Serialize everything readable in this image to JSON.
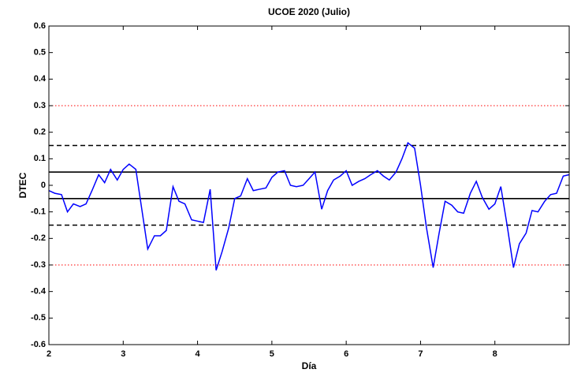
{
  "chart_data": {
    "type": "line",
    "title": "UCOE 2020 (Julio)",
    "x_label": "Día",
    "y_label": "DTEC",
    "x": [
      2.0,
      2.08,
      2.17,
      2.25,
      2.33,
      2.42,
      2.5,
      2.58,
      2.67,
      2.75,
      2.83,
      2.92,
      3.0,
      3.08,
      3.17,
      3.25,
      3.33,
      3.42,
      3.5,
      3.58,
      3.67,
      3.75,
      3.83,
      3.92,
      4.0,
      4.08,
      4.17,
      4.25,
      4.33,
      4.42,
      4.5,
      4.58,
      4.67,
      4.75,
      4.83,
      4.92,
      5.0,
      5.08,
      5.17,
      5.25,
      5.33,
      5.42,
      5.5,
      5.58,
      5.67,
      5.75,
      5.83,
      5.92,
      6.0,
      6.08,
      6.17,
      6.25,
      6.33,
      6.42,
      6.5,
      6.58,
      6.67,
      6.75,
      6.83,
      6.92,
      7.0,
      7.08,
      7.17,
      7.25,
      7.33,
      7.42,
      7.5,
      7.58,
      7.67,
      7.75,
      7.83,
      7.92,
      8.0,
      8.08,
      8.17,
      8.25,
      8.33,
      8.42,
      8.5,
      8.58,
      8.67,
      8.75,
      8.83,
      8.92,
      9.0
    ],
    "series": [
      {
        "color": "#0000ff",
        "values": [
          -0.02,
          -0.03,
          -0.035,
          -0.1,
          -0.07,
          -0.08,
          -0.07,
          -0.02,
          0.04,
          0.01,
          0.06,
          0.02,
          0.06,
          0.08,
          0.06,
          -0.09,
          -0.24,
          -0.19,
          -0.19,
          -0.17,
          -0.005,
          -0.06,
          -0.07,
          -0.13,
          -0.135,
          -0.14,
          -0.015,
          -0.32,
          -0.25,
          -0.16,
          -0.05,
          -0.04,
          0.025,
          -0.02,
          -0.015,
          -0.01,
          0.03,
          0.05,
          0.055,
          0.0,
          -0.005,
          0.0,
          0.025,
          0.05,
          -0.09,
          -0.02,
          0.02,
          0.035,
          0.055,
          0.0,
          0.015,
          0.025,
          0.04,
          0.055,
          0.035,
          0.02,
          0.05,
          0.1,
          0.16,
          0.14,
          0.0,
          -0.16,
          -0.31,
          -0.18,
          -0.06,
          -0.075,
          -0.1,
          -0.105,
          -0.03,
          0.015,
          -0.045,
          -0.09,
          -0.07,
          -0.005,
          -0.16,
          -0.31,
          -0.22,
          -0.18,
          -0.095,
          -0.1,
          -0.06,
          -0.035,
          -0.03,
          0.035,
          0.04
        ]
      }
    ],
    "reference_lines": [
      {
        "value": 0.3,
        "color": "#ff0000",
        "style": "dotted"
      },
      {
        "value": -0.3,
        "color": "#ff0000",
        "style": "dotted"
      },
      {
        "value": 0.15,
        "color": "#000000",
        "style": "dashed"
      },
      {
        "value": -0.15,
        "color": "#000000",
        "style": "dashed"
      },
      {
        "value": 0.05,
        "color": "#000000",
        "style": "solid"
      },
      {
        "value": -0.05,
        "color": "#000000",
        "style": "solid"
      }
    ],
    "xlim": [
      2,
      9
    ],
    "xticks": [
      2,
      3,
      4,
      5,
      6,
      7,
      8
    ],
    "ylim": [
      -0.6,
      0.6
    ],
    "yticks": [
      -0.6,
      -0.5,
      -0.4,
      -0.3,
      -0.2,
      -0.1,
      0,
      0.1,
      0.2,
      0.3,
      0.4,
      0.5,
      0.6
    ],
    "grid": false
  }
}
